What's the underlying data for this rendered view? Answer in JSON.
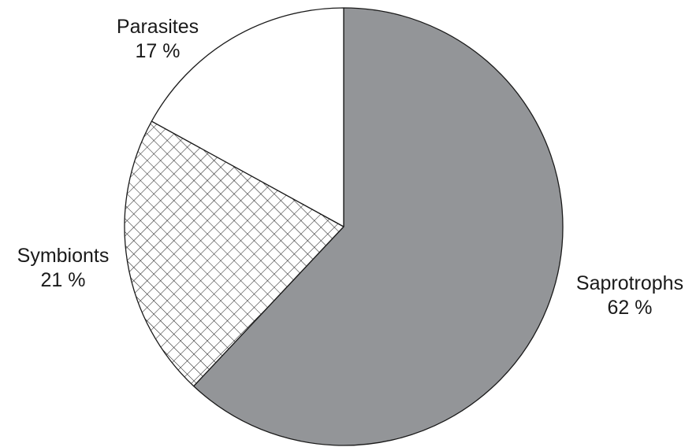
{
  "chart_data": {
    "type": "pie",
    "title": "",
    "slices": [
      {
        "label": "Saprotrophs",
        "value": 62,
        "value_label": "62 %",
        "fill": "#939598",
        "pattern": "solid"
      },
      {
        "label": "Symbionts",
        "value": 21,
        "value_label": "21 %",
        "fill": "#ffffff",
        "pattern": "crosshatch"
      },
      {
        "label": "Parasites",
        "value": 17,
        "value_label": "17 %",
        "fill": "#ffffff",
        "pattern": "none"
      }
    ],
    "start_angle": "12 o'clock",
    "direction": "clockwise",
    "legend": "none",
    "outline_color": "#1a1a1a"
  }
}
